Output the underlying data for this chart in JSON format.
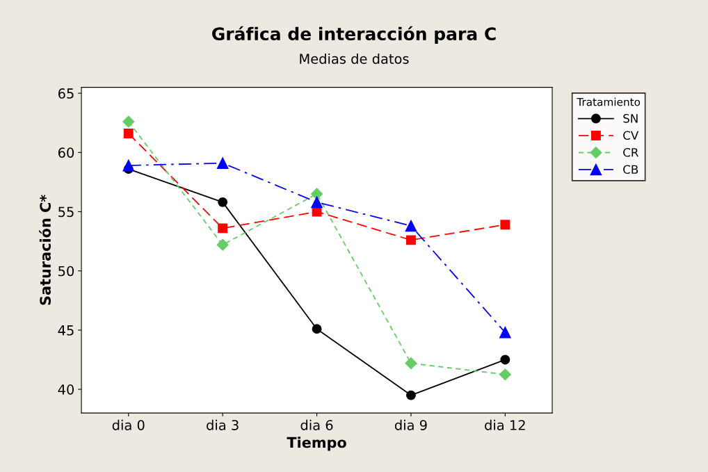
{
  "chart_data": {
    "type": "line",
    "title": "Gráfica de interacción para C",
    "subtitle": "Medias de datos",
    "xlabel": "Tiempo",
    "ylabel": "Saturación C*",
    "legend_title": "Tratamiento",
    "legend": "right",
    "grid": false,
    "categories": [
      "dia 0",
      "dia 3",
      "dia 6",
      "dia 9",
      "dia 12"
    ],
    "ylim": [
      38,
      65.5
    ],
    "yticks": [
      40,
      45,
      50,
      55,
      60,
      65
    ],
    "series": [
      {
        "name": "SN",
        "color": "#000000",
        "marker": "circle",
        "line_style": "solid",
        "values": [
          58.6,
          55.8,
          45.1,
          39.5,
          42.5
        ]
      },
      {
        "name": "CV",
        "color": "#ff0000",
        "marker": "square",
        "line_style": "dashed",
        "values": [
          61.6,
          53.6,
          55.0,
          52.6,
          53.9
        ]
      },
      {
        "name": "CR",
        "color": "#66cc66",
        "marker": "diamond",
        "line_style": "dotted",
        "values": [
          62.6,
          52.2,
          56.5,
          42.2,
          41.25
        ]
      },
      {
        "name": "CB",
        "color": "#0000ff",
        "marker": "triangle",
        "line_style": "dashdot",
        "values": [
          58.9,
          59.1,
          55.8,
          53.8,
          44.8
        ]
      }
    ]
  }
}
